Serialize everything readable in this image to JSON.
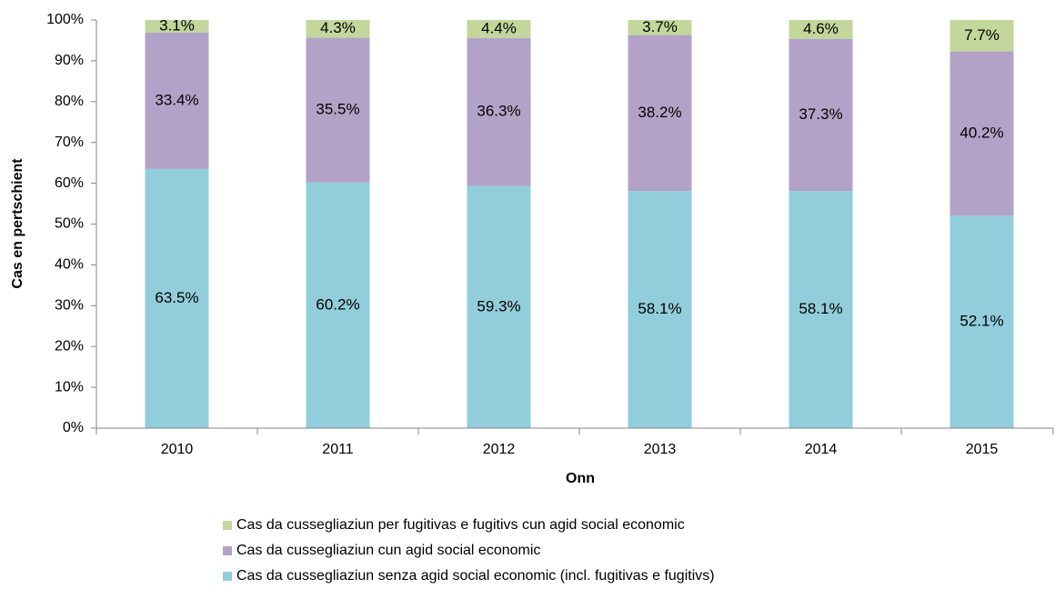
{
  "chart_data": {
    "type": "bar",
    "stacked": true,
    "x_label": "Onn",
    "y_label": "Cas en pertschient",
    "categories": [
      "2010",
      "2011",
      "2012",
      "2013",
      "2014",
      "2015"
    ],
    "series": [
      {
        "name": "Cas da cussegliaziun senza agid social economic (incl. fugitivas e fugitivs)",
        "color": "#92cddc",
        "values": [
          63.5,
          60.2,
          59.3,
          58.1,
          58.1,
          52.1
        ],
        "value_labels": [
          "63.5%",
          "60.2%",
          "59.3%",
          "58.1%",
          "58.1%",
          "52.1%"
        ]
      },
      {
        "name": "Cas da cussegliaziun cun agid social economic",
        "color": "#b3a2c7",
        "values": [
          33.4,
          35.5,
          36.3,
          38.2,
          37.3,
          40.2
        ],
        "value_labels": [
          "33.4%",
          "35.5%",
          "36.3%",
          "38.2%",
          "37.3%",
          "40.2%"
        ]
      },
      {
        "name": "Cas da cussegliaziun per fugitivas e fugitivs cun agid social economic",
        "color": "#c3d69b",
        "values": [
          3.1,
          4.3,
          4.4,
          3.7,
          4.6,
          7.7
        ],
        "value_labels": [
          "3.1%",
          "4.3%",
          "4.4%",
          "3.7%",
          "4.6%",
          "7.7%"
        ]
      }
    ],
    "ylim": [
      0,
      100
    ],
    "yticks": [
      {
        "value": 0,
        "label": "0%"
      },
      {
        "value": 10,
        "label": "10%"
      },
      {
        "value": 20,
        "label": "20%"
      },
      {
        "value": 30,
        "label": "30%"
      },
      {
        "value": 40,
        "label": "40%"
      },
      {
        "value": 50,
        "label": "50%"
      },
      {
        "value": 60,
        "label": "60%"
      },
      {
        "value": 70,
        "label": "70%"
      },
      {
        "value": 80,
        "label": "80%"
      },
      {
        "value": 90,
        "label": "90%"
      },
      {
        "value": 100,
        "label": "100%"
      }
    ],
    "grid": false,
    "legend": "bottom"
  }
}
